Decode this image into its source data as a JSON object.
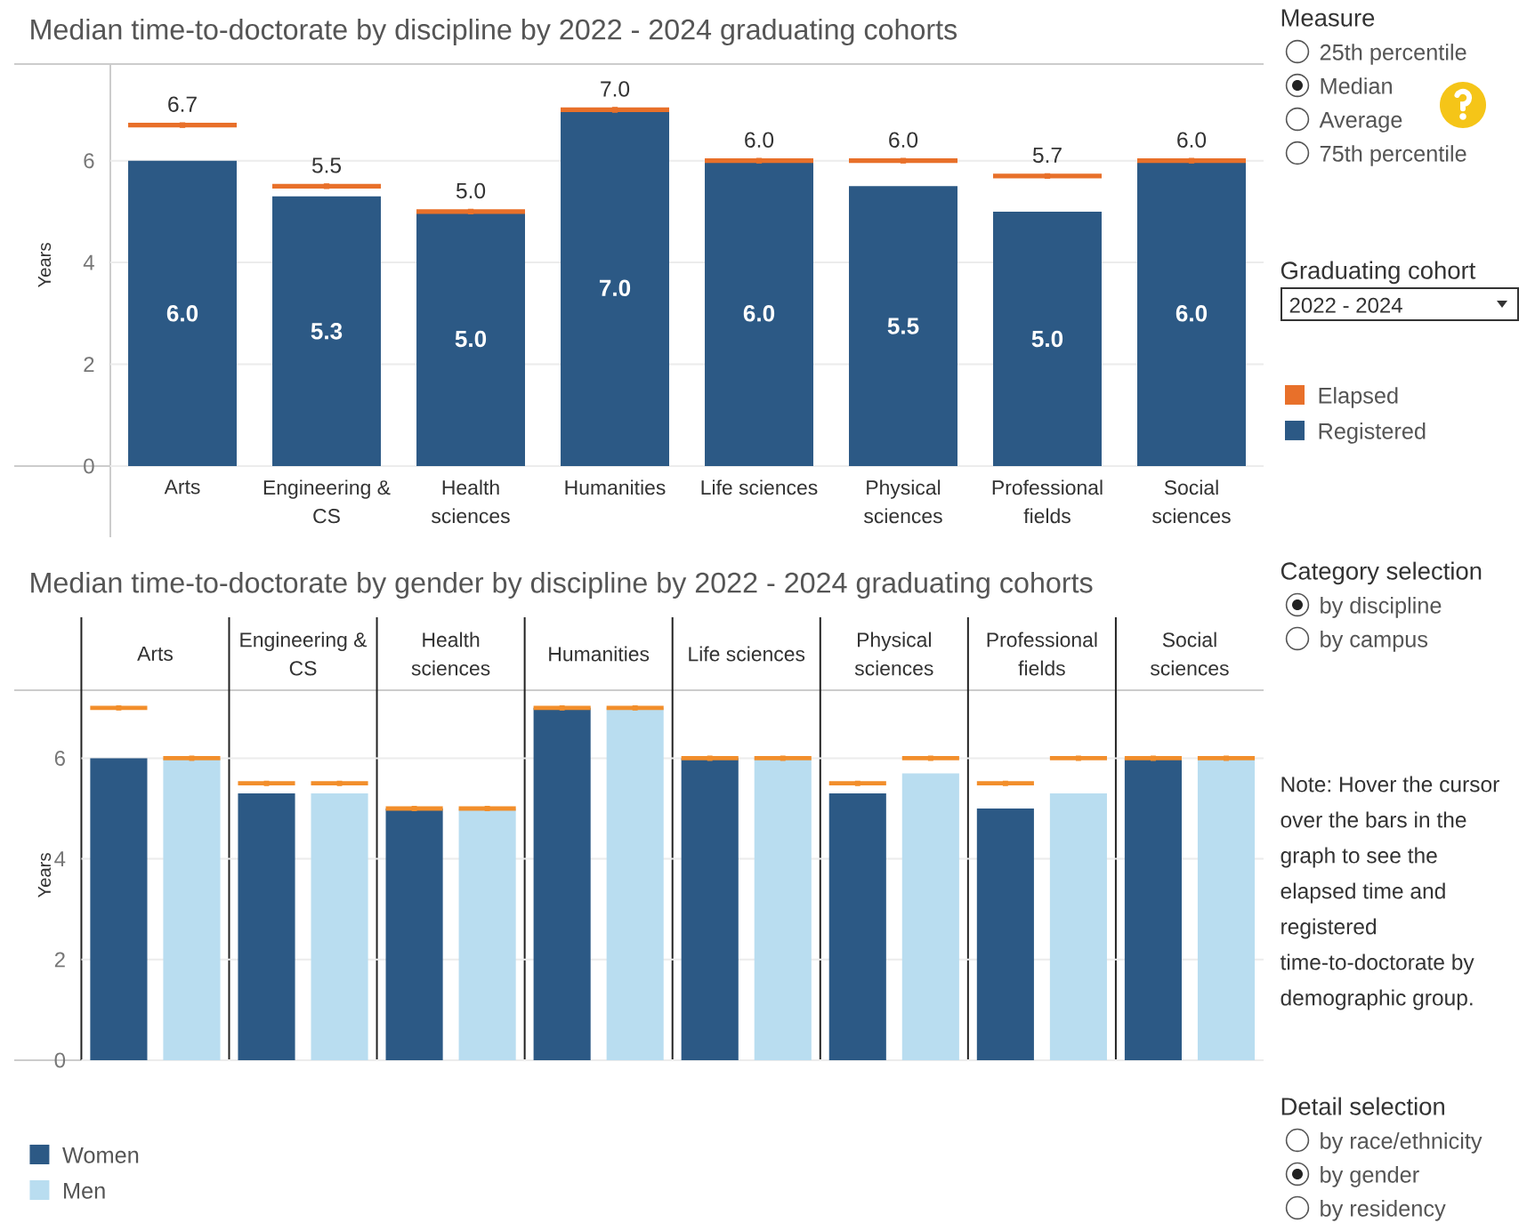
{
  "chart_data": [
    {
      "type": "bar",
      "title": "Median time-to-doctorate  by discipline by 2022 - 2024 graduating cohorts",
      "ylabel": "Years",
      "categories": [
        "Arts",
        "Engineering & CS",
        "Health sciences",
        "Humanities",
        "Life sciences",
        "Physical sciences",
        "Professional fields",
        "Social sciences"
      ],
      "series": [
        {
          "name": "Elapsed",
          "type": "scatter",
          "color": "#e8702a",
          "values": [
            6.7,
            5.5,
            5.0,
            7.0,
            6.0,
            6.0,
            5.7,
            6.0
          ],
          "value_labels": [
            "6.7",
            "5.5",
            "5.0",
            "7.0",
            "6.0",
            "6.0",
            "5.7",
            "6.0"
          ]
        },
        {
          "name": "Registered",
          "color": "#2c5985",
          "values": [
            6.0,
            5.3,
            5.0,
            7.0,
            6.0,
            5.5,
            5.0,
            6.0
          ],
          "value_labels": [
            "6.0",
            "5.3",
            "5.0",
            "7.0",
            "6.0",
            "5.5",
            "5.0",
            "6.0"
          ]
        }
      ],
      "ylim": [
        0,
        7.9
      ],
      "yticks": [
        0,
        2,
        4,
        6
      ],
      "grid": "y",
      "legend": "right"
    },
    {
      "type": "other",
      "title": "Measure",
      "categories": [
        "25th percentile",
        "Median",
        "Average",
        "75th percentile"
      ]
    },
    {
      "type": "other",
      "title": "Graduating cohort",
      "annotations": [
        "2022 - 2024"
      ]
    },
    {
      "type": "bar",
      "title": "Median time-to-doctorate by gender by discipline by 2022 - 2024 graduating cohorts",
      "ylabel": "Years",
      "categories": [
        "Arts",
        "Engineering & CS",
        "Health sciences",
        "Humanities",
        "Life sciences",
        "Physical sciences",
        "Professional fields",
        "Social sciences"
      ],
      "series": [
        {
          "name": "Women",
          "color": "#2c5985",
          "values": [
            6.0,
            5.3,
            5.0,
            7.0,
            6.0,
            5.3,
            5.0,
            6.0
          ]
        },
        {
          "name": "Men",
          "color": "#b9ddf0",
          "values": [
            6.0,
            5.3,
            5.0,
            7.0,
            6.0,
            5.7,
            5.3,
            6.0
          ]
        },
        {
          "type": "scatter",
          "color": "#f28e2b",
          "values": [
            7.0,
            5.5,
            5.0,
            7.0,
            6.0,
            5.5,
            5.5,
            6.0
          ]
        },
        {
          "type": "scatter",
          "color": "#f28e2b",
          "values": [
            6.0,
            5.5,
            5.0,
            7.0,
            6.0,
            6.0,
            6.0,
            6.0
          ]
        }
      ],
      "ylim": [
        0,
        8.8
      ],
      "yticks": [
        0,
        2,
        4,
        6
      ],
      "grid": "y",
      "legend": "bottom left",
      "annotations": [
        "Note: Hover the cursor over the bars in the graph to see the elapsed time and registered time-to-doctorate by demographic group."
      ]
    },
    {
      "type": "other",
      "title": "Category selection",
      "categories": [
        "by discipline",
        "by campus"
      ]
    },
    {
      "type": "other",
      "title": "Detail selection",
      "categories": [
        "by race/ethnicity",
        "by gender",
        "by residency"
      ]
    }
  ]
}
